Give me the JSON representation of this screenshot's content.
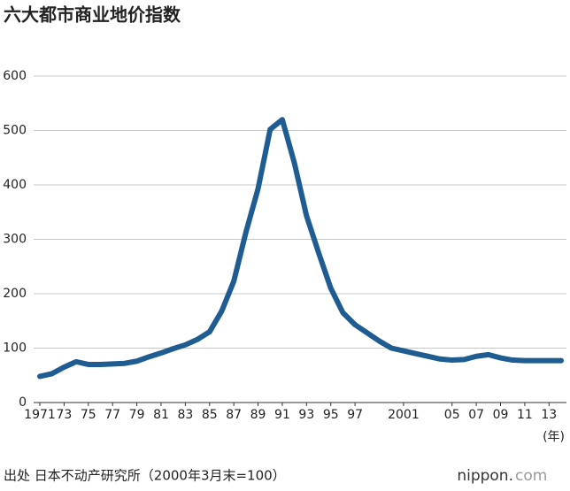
{
  "chart_data": {
    "type": "line",
    "title": "六大都市商业地价指数",
    "x": [
      1971,
      1972,
      1973,
      1974,
      1975,
      1976,
      1977,
      1978,
      1979,
      1980,
      1981,
      1982,
      1983,
      1984,
      1985,
      1986,
      1987,
      1988,
      1989,
      1990,
      1991,
      1992,
      1993,
      1994,
      1995,
      1996,
      1997,
      1998,
      1999,
      2000,
      2001,
      2002,
      2003,
      2004,
      2005,
      2006,
      2007,
      2008,
      2009,
      2010,
      2011,
      2012,
      2013,
      2014
    ],
    "values": [
      48,
      53,
      65,
      75,
      70,
      70,
      71,
      72,
      76,
      84,
      91,
      99,
      106,
      116,
      130,
      168,
      223,
      313,
      393,
      502,
      520,
      440,
      343,
      275,
      210,
      165,
      143,
      128,
      113,
      100,
      95,
      90,
      85,
      80,
      78,
      79,
      85,
      88,
      82,
      78,
      77,
      77,
      77,
      77
    ],
    "color": "#1f5c92",
    "xlim": [
      1971,
      2014
    ],
    "xticks": [
      {
        "value": 1971,
        "label": "1971"
      },
      {
        "value": 1973,
        "label": "73"
      },
      {
        "value": 1975,
        "label": "75"
      },
      {
        "value": 1977,
        "label": "77"
      },
      {
        "value": 1979,
        "label": "79"
      },
      {
        "value": 1981,
        "label": "81"
      },
      {
        "value": 1983,
        "label": "83"
      },
      {
        "value": 1985,
        "label": "85"
      },
      {
        "value": 1987,
        "label": "87"
      },
      {
        "value": 1989,
        "label": "89"
      },
      {
        "value": 1991,
        "label": "91"
      },
      {
        "value": 1993,
        "label": "93"
      },
      {
        "value": 1995,
        "label": "95"
      },
      {
        "value": 1997,
        "label": "97"
      },
      2001,
      {
        "value": 2005,
        "label": "05"
      },
      {
        "value": 2007,
        "label": "07"
      },
      {
        "value": 2009,
        "label": "09"
      },
      {
        "value": 2011,
        "label": "11"
      },
      {
        "value": 2013,
        "label": "13"
      }
    ],
    "ylim": [
      0,
      600
    ],
    "yticks": [
      0,
      100,
      200,
      300,
      400,
      500,
      600
    ],
    "grid": true,
    "x_unit_label": "(年)",
    "source": "出处  日本不动产研究所（2000年3月末=100）"
  },
  "branding": {
    "logo_main": "nippon.",
    "logo_suffix": "com"
  }
}
